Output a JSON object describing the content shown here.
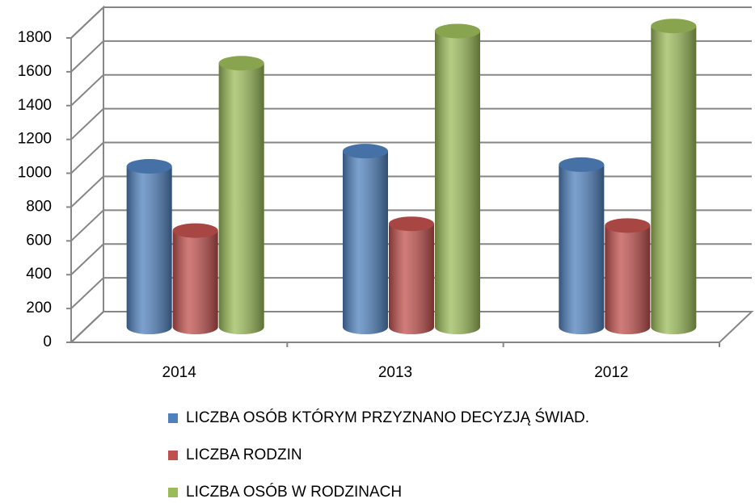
{
  "chart_data": {
    "type": "bar3d",
    "categories": [
      "2014",
      "2013",
      "2012"
    ],
    "series": [
      {
        "name": "LICZBA OSÓB KTÓRYM PRZYZNANO DECYZJĄ ŚWIAD.",
        "color": "#4f81bd",
        "values": [
          950,
          1040,
          960
        ]
      },
      {
        "name": "LICZBA RODZIN",
        "color": "#c0504d",
        "values": [
          570,
          610,
          600
        ]
      },
      {
        "name": "LICZBA OSÓB W RODZINACH",
        "color": "#9bbb59",
        "values": [
          1560,
          1750,
          1780
        ]
      }
    ],
    "ylim": [
      0,
      1800
    ],
    "yticks": [
      0,
      200,
      400,
      600,
      800,
      1000,
      1200,
      1400,
      1600,
      1800
    ],
    "grid": true
  }
}
